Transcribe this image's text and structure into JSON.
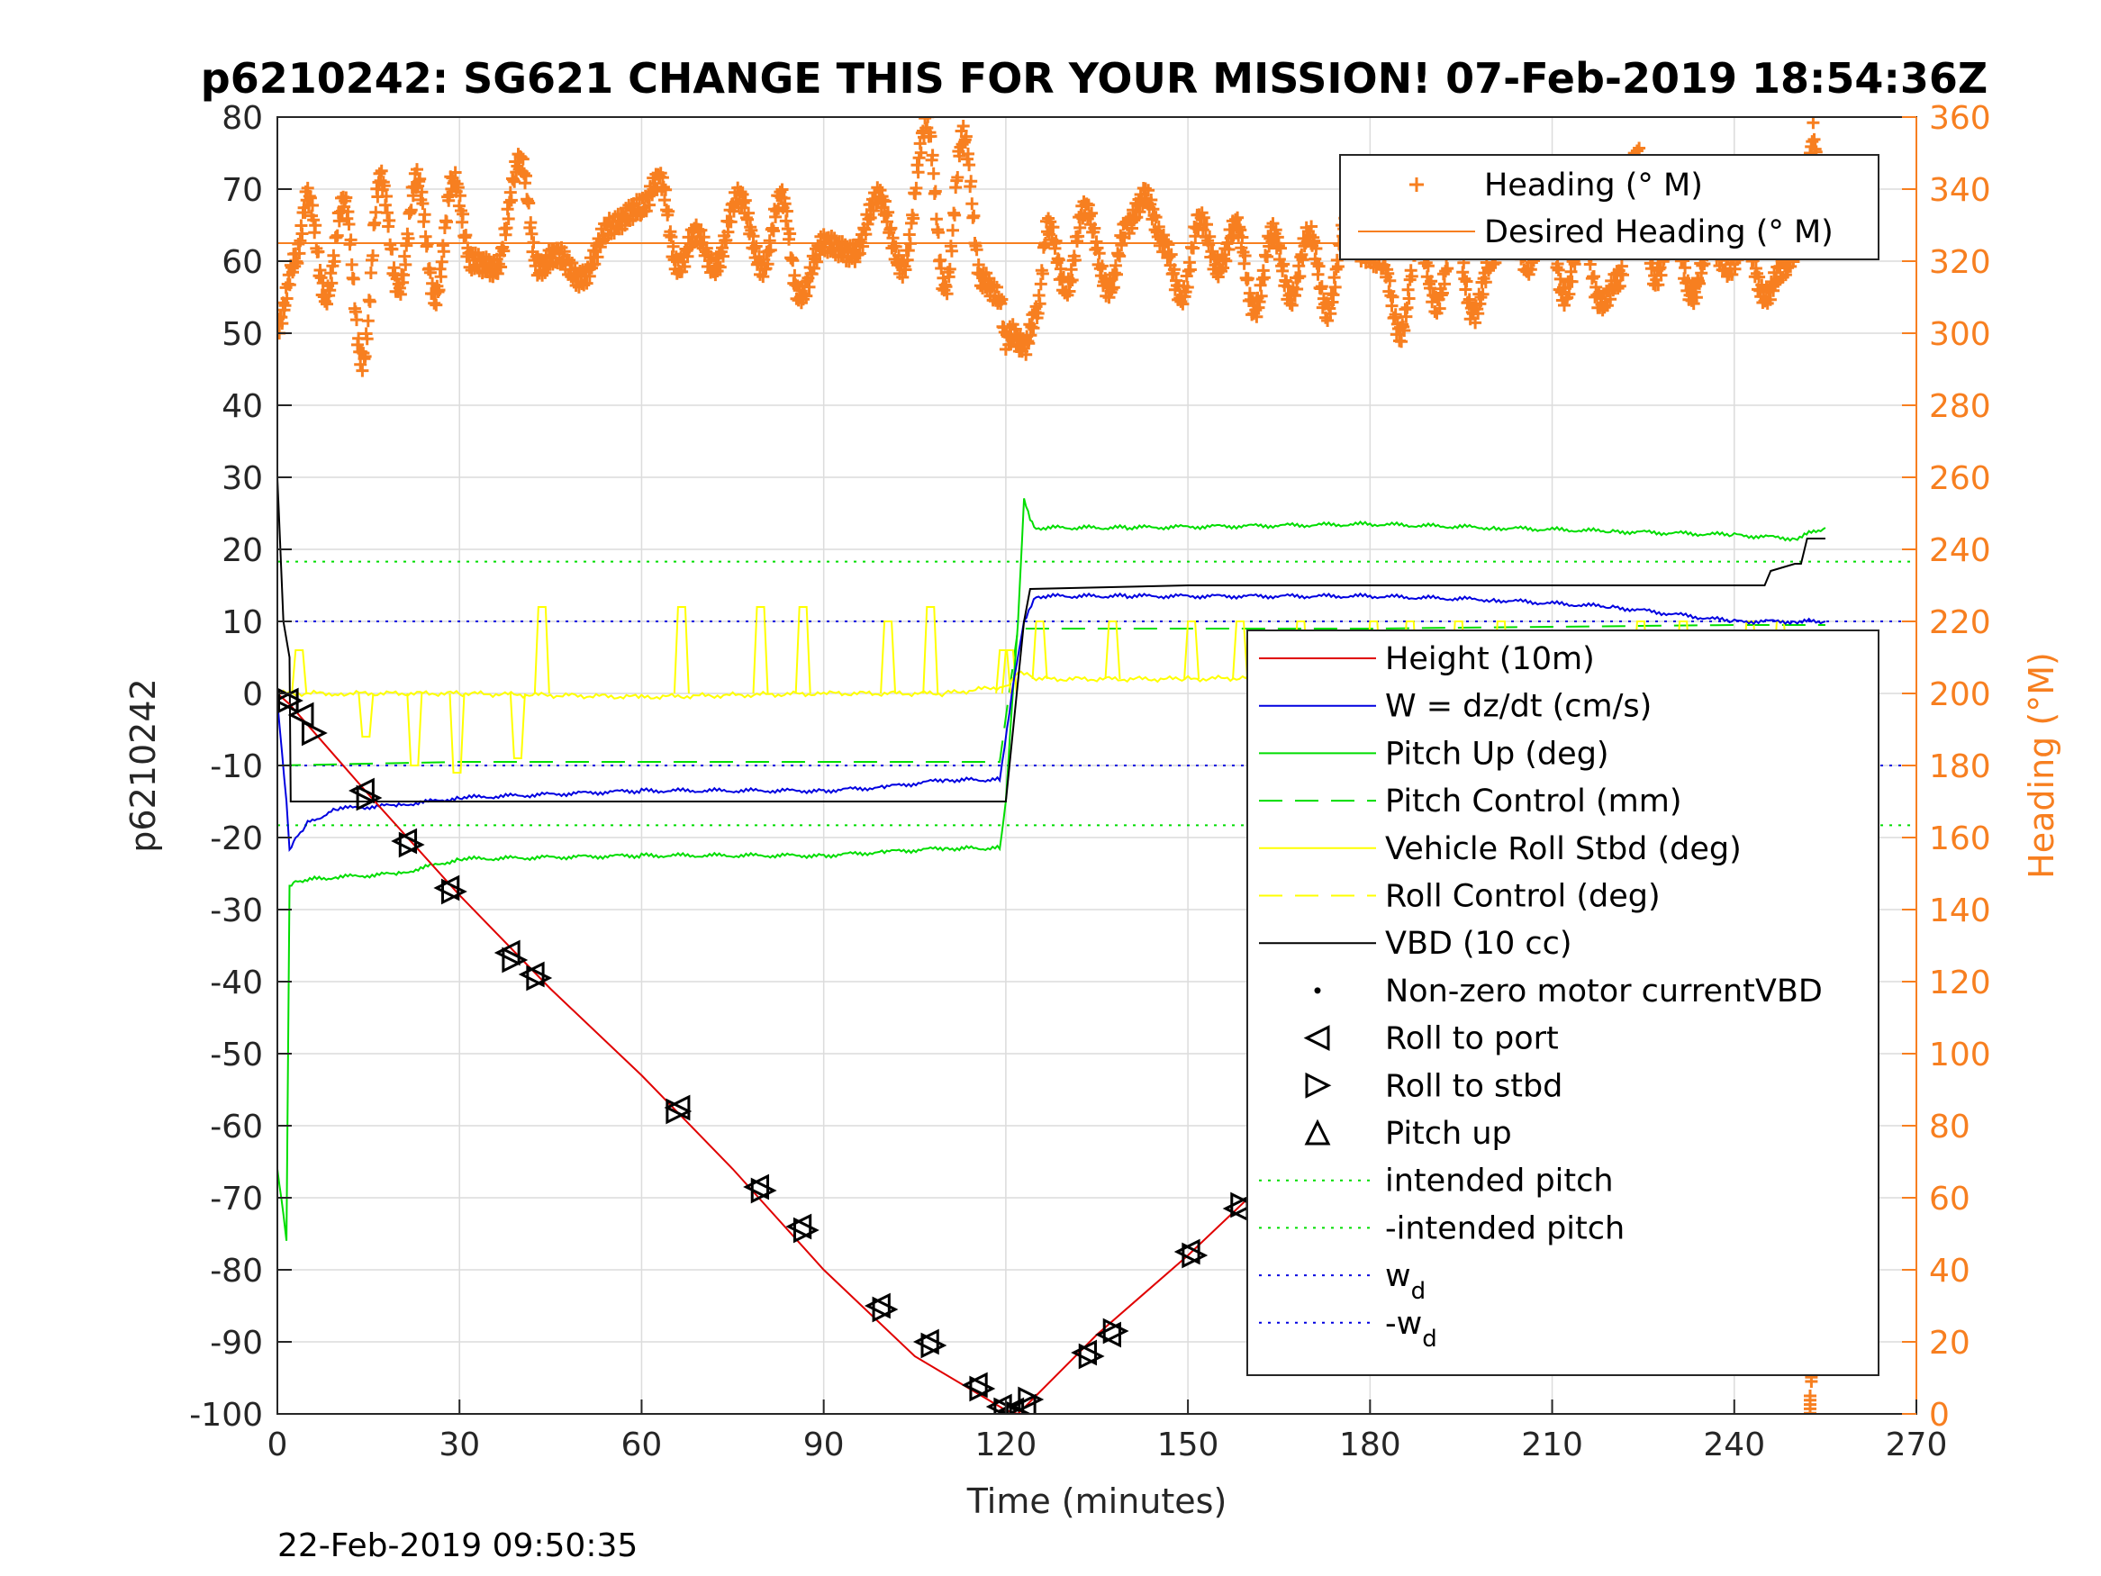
{
  "chart_data": {
    "type": "line",
    "title": "p6210242: SG621 CHANGE THIS FOR YOUR MISSION! 07-Feb-2019 18:54:36Z",
    "xlabel": "Time (minutes)",
    "ylabel": "p6210242",
    "y2label": "Heading (°M)",
    "xlim": [
      0,
      270
    ],
    "ylim": [
      -100,
      80
    ],
    "y2lim": [
      0,
      360
    ],
    "xticks": [
      "0",
      "30",
      "60",
      "90",
      "120",
      "150",
      "180",
      "210",
      "240",
      "270"
    ],
    "yticks": [
      "-100",
      "-90",
      "-80",
      "-70",
      "-60",
      "-50",
      "-40",
      "-30",
      "-20",
      "-10",
      "0",
      "10",
      "20",
      "30",
      "40",
      "50",
      "60",
      "70",
      "80"
    ],
    "y2ticks": [
      "0",
      "20",
      "40",
      "60",
      "80",
      "100",
      "120",
      "140",
      "160",
      "180",
      "200",
      "220",
      "240",
      "260",
      "280",
      "300",
      "320",
      "340",
      "360"
    ],
    "grid": true,
    "timestamp": "22-Feb-2019 09:50:35",
    "legend_heading": [
      {
        "label": "Heading (° M)",
        "color": "#f77f20",
        "style": "plus"
      },
      {
        "label": "Desired Heading (° M)",
        "color": "#f77f20",
        "style": "solid"
      }
    ],
    "legend_main": [
      {
        "label": "Height (10m)",
        "color": "#e00000",
        "style": "solid"
      },
      {
        "label": "W = dz/dt (cm/s)",
        "color": "#0000e0",
        "style": "solid"
      },
      {
        "label": "Pitch Up (deg)",
        "color": "#00dd00",
        "style": "solid"
      },
      {
        "label": "Pitch Control (mm)",
        "color": "#00dd00",
        "style": "dashed"
      },
      {
        "label": "Vehicle Roll Stbd (deg)",
        "color": "#ffff00",
        "style": "solid"
      },
      {
        "label": "Roll Control (deg)",
        "color": "#ffff00",
        "style": "dashed"
      },
      {
        "label": "VBD (10 cc)",
        "color": "#000000",
        "style": "solid"
      },
      {
        "label": "Non-zero motor currentVBD",
        "color": "#000000",
        "style": "dot"
      },
      {
        "label": "Roll to port",
        "color": "#000000",
        "style": "tri-left"
      },
      {
        "label": "Roll to stbd",
        "color": "#000000",
        "style": "tri-right"
      },
      {
        "label": "Pitch up",
        "color": "#000000",
        "style": "tri-up"
      },
      {
        "label": "intended pitch",
        "color": "#00dd00",
        "style": "dotted"
      },
      {
        "label": "-intended pitch",
        "color": "#00dd00",
        "style": "dotted"
      },
      {
        "label": "w",
        "sub": "d",
        "color": "#0000e0",
        "style": "dotted"
      },
      {
        "label": "-w",
        "sub": "d",
        "color": "#0000e0",
        "style": "dotted"
      }
    ],
    "ref_lines": [
      {
        "name": "intended pitch",
        "y": 18.3,
        "color": "#00dd00"
      },
      {
        "name": "-intended pitch",
        "y": -18.3,
        "color": "#00dd00"
      },
      {
        "name": "w_d",
        "y": 10,
        "color": "#0000e0"
      },
      {
        "name": "-w_d",
        "y": -10,
        "color": "#0000e0"
      }
    ],
    "desired_heading": 325,
    "series": {
      "height": {
        "x": [
          0,
          2,
          15,
          30,
          45,
          60,
          75,
          90,
          105,
          120,
          122,
          135,
          150,
          165,
          180,
          195,
          210,
          225,
          240,
          255
        ],
        "y": [
          0,
          -1.5,
          -14,
          -28,
          -41,
          -53,
          -66,
          -80,
          -92,
          -99.5,
          -100,
          -89,
          -78,
          -66,
          -53,
          -40,
          -27,
          -19,
          -9,
          0
        ]
      },
      "w": {
        "x": [
          0,
          1.5,
          2,
          3,
          5,
          10,
          20,
          30,
          60,
          90,
          100,
          110,
          119,
          121,
          123,
          125,
          140,
          180,
          200,
          220,
          240,
          250,
          255
        ],
        "y": [
          -1,
          -15,
          -22,
          -20,
          -18,
          -16,
          -15.5,
          -14.5,
          -13.5,
          -13.5,
          -13,
          -12,
          -12,
          0,
          10,
          13.5,
          13.5,
          13.5,
          13,
          12,
          10,
          10,
          10
        ]
      },
      "pitch_up": {
        "x": [
          0,
          1,
          1.5,
          2,
          3,
          10,
          20,
          30,
          60,
          90,
          100,
          110,
          119,
          120,
          121,
          122,
          123,
          124,
          125,
          140,
          180,
          200,
          220,
          240,
          250,
          255
        ],
        "y": [
          -66,
          -72,
          -76,
          -27,
          -26,
          -25.5,
          -25,
          -23,
          -22.5,
          -22.5,
          -22,
          -21.5,
          -21.5,
          -15,
          -2,
          10,
          27,
          24,
          23,
          23,
          23.5,
          23,
          22.5,
          22,
          21.5,
          23
        ]
      },
      "pitch_control": {
        "x": [
          0,
          30,
          119,
          122,
          180,
          240,
          255
        ],
        "y": [
          -10,
          -9.5,
          -9.5,
          9,
          9,
          9.5,
          9.5
        ]
      },
      "roll": {
        "x": [
          0,
          10,
          30,
          60,
          90,
          110,
          120,
          122,
          125,
          150,
          180,
          210,
          240,
          255
        ],
        "y": [
          0,
          0,
          0,
          -0.5,
          0,
          0,
          1,
          3,
          2,
          2,
          2.5,
          2,
          2,
          2
        ]
      },
      "roll_spikes_x": [
        3,
        14,
        22,
        29,
        39,
        43,
        66,
        79,
        86,
        100,
        107,
        119,
        120,
        125,
        137,
        150,
        158,
        168,
        180,
        186,
        194,
        201,
        224,
        231,
        242,
        247,
        250
      ],
      "roll_spikes_y": [
        6,
        -6,
        -10,
        -11,
        -9,
        12,
        12,
        12,
        12,
        10,
        12,
        6,
        6,
        10,
        10,
        10,
        10,
        10,
        10,
        10,
        10,
        10,
        10,
        10,
        10,
        10,
        -10
      ],
      "vbd": {
        "x": [
          0,
          1,
          2,
          2.2,
          119,
          120,
          123,
          124,
          150,
          200,
          245,
          246,
          250,
          251,
          252,
          253,
          255
        ],
        "y": [
          30,
          10,
          5,
          -15,
          -15,
          -15,
          10,
          14.5,
          15,
          15,
          15,
          17,
          18,
          18,
          21.5,
          21.5,
          21.5
        ]
      },
      "heading": {
        "x": [
          0,
          3,
          5,
          8,
          11,
          14,
          17,
          20,
          23,
          26,
          29,
          32,
          36,
          40,
          43,
          46,
          50,
          55,
          60,
          63,
          66,
          69,
          72,
          76,
          80,
          83,
          86,
          90,
          95,
          99,
          103,
          107,
          110,
          113,
          116,
          119,
          120,
          121,
          123,
          125,
          127,
          130,
          133,
          137,
          140,
          143,
          146,
          149,
          152,
          155,
          158,
          161,
          164,
          167,
          170,
          173,
          176,
          179,
          182,
          185,
          188,
          191,
          194,
          197,
          200,
          203,
          206,
          209,
          212,
          215,
          218,
          221,
          224,
          227,
          230,
          233,
          236,
          239,
          242,
          245,
          248,
          251,
          252,
          253,
          254
        ],
        "y": [
          302,
          320,
          338,
          310,
          337,
          292,
          343,
          312,
          343,
          310,
          343,
          320,
          318,
          348,
          318,
          322,
          315,
          330,
          335,
          343,
          318,
          328,
          318,
          338,
          318,
          338,
          310,
          325,
          322,
          338,
          318,
          358,
          312,
          355,
          315,
          310,
          298,
          300,
          296,
          305,
          330,
          312,
          335,
          312,
          330,
          338,
          325,
          310,
          332,
          318,
          330,
          306,
          328,
          310,
          328,
          306,
          330,
          322,
          320,
          300,
          326,
          308,
          328,
          305,
          320,
          335,
          318,
          338,
          310,
          328,
          308,
          315,
          350,
          315,
          330,
          310,
          325,
          318,
          325,
          310,
          318,
          325,
          340,
          356,
          340
        ]
      },
      "heading_wrap": {
        "x": [
          252.5,
          252.7,
          253,
          253.2,
          253.5
        ],
        "y": [
          5,
          15,
          20,
          25,
          30
        ]
      }
    },
    "markers": {
      "roll_port": [
        [
          1.5,
          -1
        ],
        [
          4,
          -3
        ],
        [
          14,
          -13.5
        ],
        [
          21,
          -20.5
        ],
        [
          28,
          -27
        ],
        [
          38,
          -36
        ],
        [
          42,
          -39
        ],
        [
          66,
          -57.5
        ],
        [
          79,
          -68.5
        ],
        [
          86,
          -74
        ],
        [
          99,
          -85
        ],
        [
          107,
          -90
        ],
        [
          115,
          -96
        ],
        [
          119,
          -99
        ],
        [
          121,
          -99.5
        ],
        [
          123,
          -99
        ],
        [
          133,
          -91.5
        ],
        [
          137,
          -89
        ],
        [
          150,
          -77.5
        ],
        [
          158,
          -71.5
        ],
        [
          168,
          -63
        ],
        [
          178,
          -54.5
        ],
        [
          186,
          -49
        ],
        [
          194,
          -43
        ],
        [
          201,
          -37.5
        ],
        [
          224,
          -20
        ],
        [
          227,
          -17
        ],
        [
          231,
          -15
        ],
        [
          242,
          -7.5
        ],
        [
          244,
          -6
        ],
        [
          246,
          -5
        ],
        [
          248,
          -4
        ],
        [
          249,
          -3
        ],
        [
          251,
          -2
        ]
      ],
      "roll_stbd": [
        [
          2,
          -1
        ],
        [
          6,
          -5.5
        ],
        [
          15,
          -14.5
        ],
        [
          22,
          -21
        ],
        [
          29,
          -27.5
        ],
        [
          39,
          -37
        ],
        [
          43,
          -39.5
        ],
        [
          66,
          -58
        ],
        [
          80,
          -69
        ],
        [
          87,
          -74.5
        ],
        [
          100,
          -85.5
        ],
        [
          108,
          -90.5
        ],
        [
          116,
          -96.5
        ],
        [
          120,
          -99.5
        ],
        [
          122,
          -100
        ],
        [
          124,
          -98
        ],
        [
          134,
          -92
        ],
        [
          138,
          -88.5
        ],
        [
          151,
          -78
        ],
        [
          159,
          -71
        ],
        [
          169,
          -62.5
        ],
        [
          179,
          -54
        ],
        [
          187,
          -48.5
        ],
        [
          195,
          -42.5
        ],
        [
          202,
          -37
        ],
        [
          225,
          -19.5
        ],
        [
          228,
          -17.5
        ],
        [
          232,
          -14.5
        ],
        [
          243,
          -7
        ],
        [
          245,
          -5.5
        ],
        [
          247,
          -4.5
        ],
        [
          250,
          -3
        ],
        [
          252,
          -2
        ]
      ]
    }
  }
}
